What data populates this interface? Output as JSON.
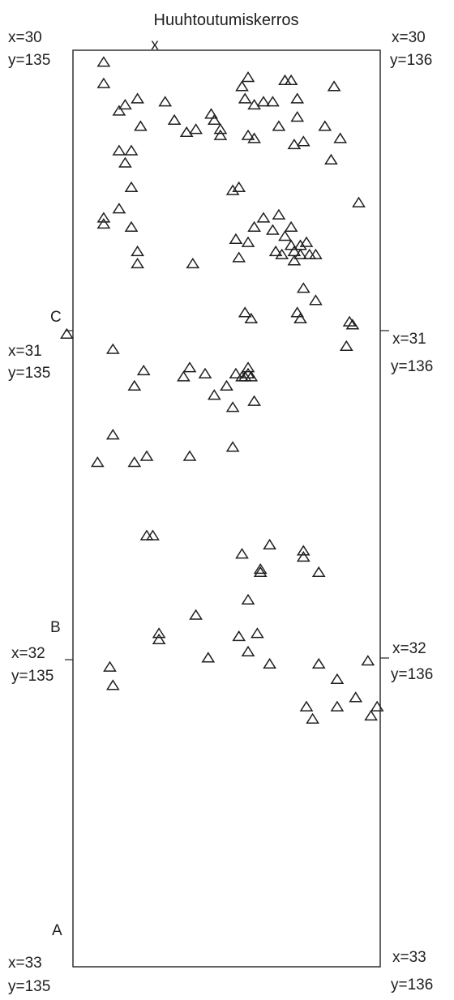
{
  "title": "Huuhtoutumiskerros",
  "marker_label": "x",
  "section_labels": [
    "C",
    "B",
    "A"
  ],
  "left_labels": [
    {
      "x": "x=30",
      "y": "y=135"
    },
    {
      "x": "x=31",
      "y": "y=135"
    },
    {
      "x": "x=32",
      "y": "y=135"
    },
    {
      "x": "x=33",
      "y": "y=135"
    }
  ],
  "right_labels": [
    {
      "x": "x=30",
      "y": "y=136"
    },
    {
      "x": "x=31",
      "y": "y=136"
    },
    {
      "x": "x=32",
      "y": "y=136"
    },
    {
      "x": "x=33",
      "y": "y=136"
    }
  ],
  "chart_data": {
    "type": "scatter",
    "marker": "triangle",
    "x_range": [
      135,
      136
    ],
    "y_range": [
      30,
      33
    ],
    "points": [
      [
        135.1,
        30.04
      ],
      [
        135.1,
        30.11
      ],
      [
        135.17,
        30.18
      ],
      [
        135.21,
        30.16
      ],
      [
        135.15,
        30.2
      ],
      [
        135.3,
        30.17
      ],
      [
        135.22,
        30.25
      ],
      [
        135.33,
        30.23
      ],
      [
        135.37,
        30.27
      ],
      [
        135.4,
        30.26
      ],
      [
        135.45,
        30.21
      ],
      [
        135.46,
        30.23
      ],
      [
        135.48,
        30.26
      ],
      [
        135.48,
        30.28
      ],
      [
        135.57,
        30.09
      ],
      [
        135.55,
        30.12
      ],
      [
        135.56,
        30.16
      ],
      [
        135.59,
        30.18
      ],
      [
        135.62,
        30.17
      ],
      [
        135.65,
        30.17
      ],
      [
        135.57,
        30.28
      ],
      [
        135.59,
        30.29
      ],
      [
        135.67,
        30.25
      ],
      [
        135.72,
        30.31
      ],
      [
        135.69,
        30.1
      ],
      [
        135.71,
        30.1
      ],
      [
        135.73,
        30.16
      ],
      [
        135.73,
        30.22
      ],
      [
        135.75,
        30.3
      ],
      [
        135.85,
        30.12
      ],
      [
        135.82,
        30.25
      ],
      [
        135.87,
        30.29
      ],
      [
        135.84,
        30.36
      ],
      [
        135.15,
        30.33
      ],
      [
        135.19,
        30.33
      ],
      [
        135.17,
        30.37
      ],
      [
        135.19,
        30.45
      ],
      [
        135.15,
        30.52
      ],
      [
        135.1,
        30.55
      ],
      [
        135.1,
        30.57
      ],
      [
        135.19,
        30.58
      ],
      [
        135.21,
        30.66
      ],
      [
        135.21,
        30.7
      ],
      [
        135.39,
        30.7
      ],
      [
        135.52,
        30.46
      ],
      [
        135.54,
        30.45
      ],
      [
        135.62,
        30.55
      ],
      [
        135.59,
        30.58
      ],
      [
        135.57,
        30.63
      ],
      [
        135.53,
        30.62
      ],
      [
        135.54,
        30.68
      ],
      [
        135.67,
        30.54
      ],
      [
        135.65,
        30.59
      ],
      [
        135.71,
        30.58
      ],
      [
        135.69,
        30.61
      ],
      [
        135.71,
        30.64
      ],
      [
        135.66,
        30.66
      ],
      [
        135.68,
        30.67
      ],
      [
        135.72,
        30.66
      ],
      [
        135.74,
        30.64
      ],
      [
        135.74,
        30.67
      ],
      [
        135.77,
        30.67
      ],
      [
        135.76,
        30.63
      ],
      [
        135.79,
        30.67
      ],
      [
        135.72,
        30.69
      ],
      [
        135.79,
        30.82
      ],
      [
        135.93,
        30.5
      ],
      [
        135.75,
        30.78
      ],
      [
        134.98,
        30.93
      ],
      [
        135.13,
        30.98
      ],
      [
        135.56,
        30.86
      ],
      [
        135.58,
        30.88
      ],
      [
        135.38,
        31.04
      ],
      [
        135.36,
        31.07
      ],
      [
        135.23,
        31.05
      ],
      [
        135.53,
        31.06
      ],
      [
        135.55,
        31.07
      ],
      [
        135.56,
        31.07
      ],
      [
        135.57,
        31.06
      ],
      [
        135.58,
        31.07
      ],
      [
        135.52,
        31.17
      ],
      [
        135.43,
        31.06
      ],
      [
        135.46,
        31.13
      ],
      [
        135.5,
        31.1
      ],
      [
        135.2,
        31.1
      ],
      [
        135.59,
        31.15
      ],
      [
        135.73,
        30.86
      ],
      [
        135.74,
        30.88
      ],
      [
        135.89,
        30.97
      ],
      [
        135.9,
        30.89
      ],
      [
        135.91,
        30.9
      ],
      [
        135.57,
        31.04
      ],
      [
        135.13,
        31.26
      ],
      [
        135.08,
        31.35
      ],
      [
        135.2,
        31.35
      ],
      [
        135.24,
        31.33
      ],
      [
        135.38,
        31.33
      ],
      [
        135.52,
        31.3
      ],
      [
        135.24,
        31.59
      ],
      [
        135.26,
        31.59
      ],
      [
        135.64,
        31.62
      ],
      [
        135.55,
        31.65
      ],
      [
        135.75,
        31.64
      ],
      [
        135.75,
        31.66
      ],
      [
        135.8,
        31.71
      ],
      [
        135.61,
        31.7
      ],
      [
        135.61,
        31.71
      ],
      [
        135.57,
        31.8
      ],
      [
        135.4,
        31.85
      ],
      [
        135.54,
        31.92
      ],
      [
        135.6,
        31.91
      ],
      [
        135.57,
        31.97
      ],
      [
        135.28,
        31.91
      ],
      [
        135.28,
        31.93
      ],
      [
        135.12,
        32.02
      ],
      [
        135.44,
        31.99
      ],
      [
        135.64,
        32.01
      ],
      [
        135.8,
        32.01
      ],
      [
        135.86,
        32.06
      ],
      [
        135.96,
        32.0
      ],
      [
        135.13,
        32.08
      ],
      [
        135.92,
        32.12
      ],
      [
        135.99,
        32.15
      ],
      [
        135.86,
        32.15
      ],
      [
        135.76,
        32.15
      ],
      [
        135.97,
        32.18
      ],
      [
        135.78,
        32.19
      ]
    ]
  }
}
